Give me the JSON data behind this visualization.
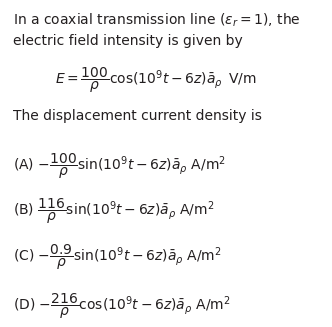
{
  "bg_color": "#ffffff",
  "text_color": "#231f20",
  "line1": "In a coaxial transmission line ($\\varepsilon_r = 1$), the",
  "line2": "electric field intensity is given by",
  "line3": "$E = \\dfrac{100}{\\rho}\\cos(10^9 t - 6z)\\bar{a}_{\\rho}\\,$ V/m",
  "line4": "The displacement current density is",
  "optA": "(A) $-\\dfrac{100}{\\rho}\\sin(10^9 t - 6z)\\bar{a}_{\\rho}$ A/m$^2$",
  "optB": "(B) $\\dfrac{116}{\\rho}\\sin(10^9 t - 6z)\\bar{a}_{\\rho}$ A/m$^2$",
  "optC": "(C) $-\\dfrac{0.9}{\\rho}\\sin(10^9 t - 6z)\\bar{a}_{\\rho}$ A/m$^2$",
  "optD": "(D) $-\\dfrac{216}{\\rho}\\cos(10^9 t - 6z)\\bar{a}_{\\rho}$ A/m$^2$",
  "fs": 10.0,
  "fig_w": 3.32,
  "fig_h": 3.27,
  "dpi": 100
}
